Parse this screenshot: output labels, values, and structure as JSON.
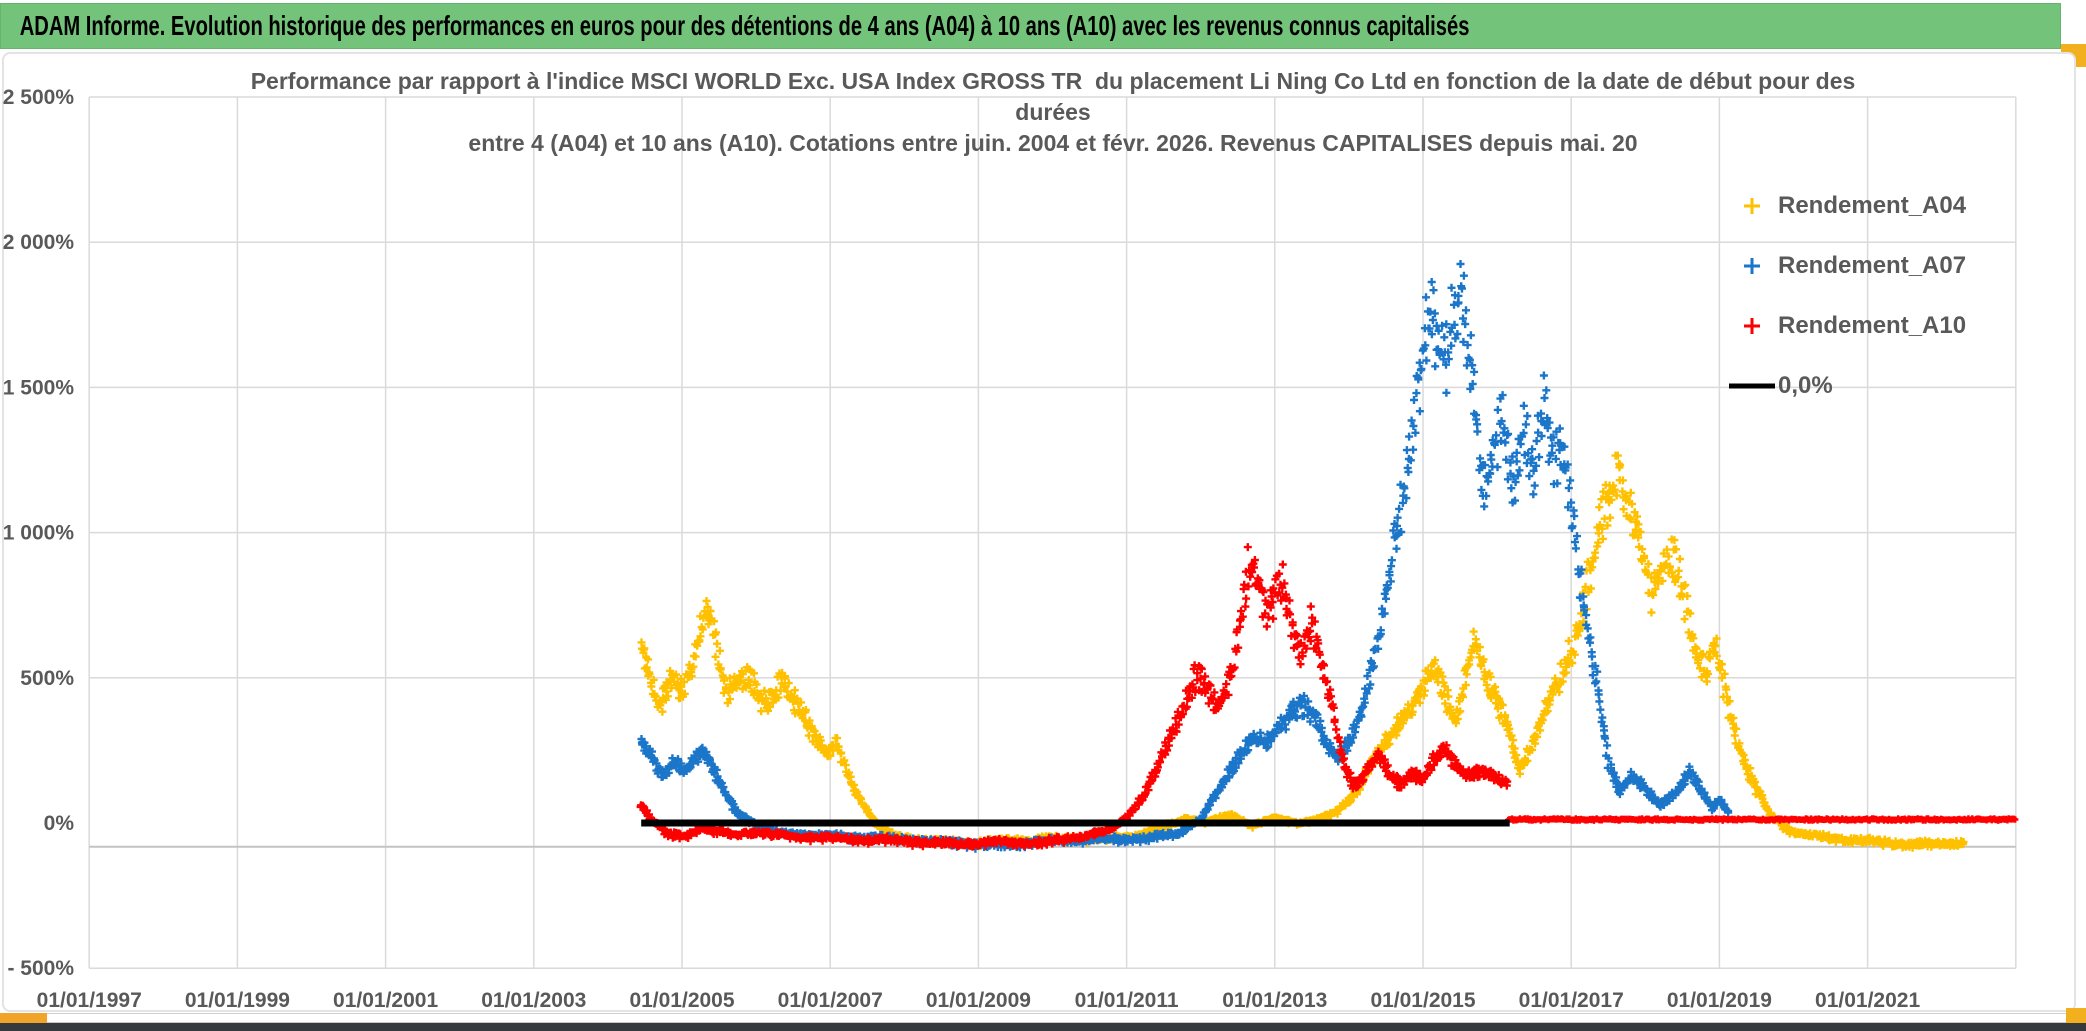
{
  "banner": {
    "title": "ADAM Informe. Evolution historique des performances en euros pour des détentions de 4 ans (A04) à 10 ans (A10) avec les revenus connus capitalisés"
  },
  "title": {
    "line1": "Performance par rapport à l'indice MSCI WORLD Exc. USA Index GROSS TR  du placement Li Ning Co Ltd en fonction de la date de début pour des",
    "line2": "durées",
    "line3": "entre 4 (A04) et 10 ans (A10). Cotations entre juin. 2004 et févr. 2026. Revenus CAPITALISES depuis mai. 20"
  },
  "legend": {
    "items": [
      {
        "label": "Rendement_A04",
        "color": "#FFC000",
        "marker": "plus"
      },
      {
        "label": "Rendement_A07",
        "color": "#1B76C9",
        "marker": "plus"
      },
      {
        "label": "Rendement_A10",
        "color": "#FF0000",
        "marker": "plus"
      },
      {
        "label": "0,0%",
        "color": "#000000",
        "marker": "line"
      }
    ]
  },
  "chart_data": {
    "type": "scatter",
    "marker_glyph": "+",
    "grid": true,
    "legend_position": "right-top-inside",
    "x_axis": {
      "tick_labels": [
        "01/01/1997",
        "01/01/1999",
        "01/01/2001",
        "01/01/2003",
        "01/01/2005",
        "01/01/2007",
        "01/01/2009",
        "01/01/2011",
        "01/01/2013",
        "01/01/2015",
        "01/01/2017",
        "01/01/2019",
        "01/01/2021"
      ],
      "tick_years": [
        1997,
        1999,
        2001,
        2003,
        2005,
        2007,
        2009,
        2011,
        2013,
        2015,
        2017,
        2019,
        2021
      ],
      "gridline_years": [
        1997,
        1999,
        2001,
        2003,
        2005,
        2007,
        2009,
        2011,
        2013,
        2015,
        2017,
        2019,
        2021,
        2023
      ],
      "range_years": [
        1997,
        2023
      ]
    },
    "y_axis": {
      "tick_labels": [
        "2 500%",
        "2 000%",
        "1 500%",
        "1 000%",
        "500%",
        "0%",
        "- 500%"
      ],
      "tick_values": [
        2500,
        2000,
        1500,
        1000,
        500,
        0,
        -500
      ],
      "unit": "%",
      "range": [
        -500,
        2500
      ]
    },
    "extra_axis_line_pct": -82,
    "zero_line": {
      "label": "0,0%",
      "value": 0,
      "from_year": 2004.45,
      "to_year": 2016.17,
      "color": "#000000"
    },
    "series": [
      {
        "name": "Rendement_A04",
        "color": "#FFC000",
        "seed": 11,
        "clamp_max": 1265,
        "anchors": [
          [
            2004.45,
            640
          ],
          [
            2004.55,
            520
          ],
          [
            2004.7,
            390
          ],
          [
            2004.85,
            470
          ],
          [
            2005.0,
            450
          ],
          [
            2005.1,
            520
          ],
          [
            2005.22,
            650
          ],
          [
            2005.33,
            755
          ],
          [
            2005.45,
            640
          ],
          [
            2005.6,
            455
          ],
          [
            2005.75,
            515
          ],
          [
            2005.9,
            560
          ],
          [
            2006.05,
            470
          ],
          [
            2006.2,
            440
          ],
          [
            2006.35,
            515
          ],
          [
            2006.5,
            450
          ],
          [
            2006.65,
            400
          ],
          [
            2006.8,
            300
          ],
          [
            2006.95,
            240
          ],
          [
            2007.1,
            265
          ],
          [
            2007.25,
            160
          ],
          [
            2007.45,
            60
          ],
          [
            2007.65,
            -15
          ],
          [
            2007.9,
            -45
          ],
          [
            2008.3,
            -55
          ],
          [
            2009.0,
            -62
          ],
          [
            2009.8,
            -58
          ],
          [
            2010.6,
            -52
          ],
          [
            2011.1,
            -42
          ],
          [
            2011.5,
            -10
          ],
          [
            2011.8,
            18
          ],
          [
            2012.1,
            2
          ],
          [
            2012.4,
            28
          ],
          [
            2012.7,
            -8
          ],
          [
            2013.0,
            18
          ],
          [
            2013.3,
            2
          ],
          [
            2013.6,
            15
          ],
          [
            2013.85,
            50
          ],
          [
            2014.1,
            120
          ],
          [
            2014.3,
            215
          ],
          [
            2014.55,
            300
          ],
          [
            2014.8,
            390
          ],
          [
            2015.0,
            465
          ],
          [
            2015.15,
            515
          ],
          [
            2015.3,
            430
          ],
          [
            2015.45,
            360
          ],
          [
            2015.58,
            540
          ],
          [
            2015.7,
            635
          ],
          [
            2015.85,
            515
          ],
          [
            2016.0,
            430
          ],
          [
            2016.15,
            370
          ],
          [
            2016.3,
            205
          ],
          [
            2016.5,
            300
          ],
          [
            2016.7,
            430
          ],
          [
            2016.9,
            555
          ],
          [
            2017.1,
            700
          ],
          [
            2017.3,
            895
          ],
          [
            2017.5,
            1105
          ],
          [
            2017.63,
            1240
          ],
          [
            2017.78,
            1090
          ],
          [
            2017.95,
            930
          ],
          [
            2018.08,
            770
          ],
          [
            2018.22,
            880
          ],
          [
            2018.38,
            975
          ],
          [
            2018.52,
            850
          ],
          [
            2018.66,
            625
          ],
          [
            2018.82,
            540
          ],
          [
            2018.95,
            655
          ],
          [
            2019.1,
            480
          ],
          [
            2019.28,
            260
          ],
          [
            2019.5,
            120
          ],
          [
            2019.7,
            30
          ],
          [
            2019.9,
            -18
          ],
          [
            2020.2,
            -45
          ],
          [
            2020.7,
            -55
          ],
          [
            2021.2,
            -60
          ],
          [
            2021.7,
            -68
          ],
          [
            2022.3,
            -65
          ]
        ]
      },
      {
        "name": "Rendement_A07",
        "color": "#1B76C9",
        "seed": 29,
        "clamp_max": 1925,
        "anchors": [
          [
            2004.45,
            310
          ],
          [
            2004.6,
            230
          ],
          [
            2004.75,
            160
          ],
          [
            2004.9,
            208
          ],
          [
            2005.05,
            175
          ],
          [
            2005.18,
            228
          ],
          [
            2005.3,
            248
          ],
          [
            2005.45,
            168
          ],
          [
            2005.6,
            90
          ],
          [
            2005.75,
            40
          ],
          [
            2005.95,
            5
          ],
          [
            2006.2,
            -25
          ],
          [
            2006.6,
            -35
          ],
          [
            2007.2,
            -45
          ],
          [
            2007.8,
            -55
          ],
          [
            2008.6,
            -62
          ],
          [
            2009.4,
            -68
          ],
          [
            2010.0,
            -62
          ],
          [
            2010.6,
            -58
          ],
          [
            2011.2,
            -48
          ],
          [
            2011.7,
            -30
          ],
          [
            2012.0,
            18
          ],
          [
            2012.25,
            118
          ],
          [
            2012.5,
            228
          ],
          [
            2012.7,
            298
          ],
          [
            2012.9,
            268
          ],
          [
            2013.1,
            338
          ],
          [
            2013.35,
            428
          ],
          [
            2013.55,
            378
          ],
          [
            2013.7,
            280
          ],
          [
            2013.85,
            240
          ],
          [
            2014.0,
            308
          ],
          [
            2014.2,
            448
          ],
          [
            2014.4,
            648
          ],
          [
            2014.55,
            898
          ],
          [
            2014.7,
            1148
          ],
          [
            2014.85,
            1418
          ],
          [
            2015.0,
            1598
          ],
          [
            2015.08,
            1775
          ],
          [
            2015.18,
            1640
          ],
          [
            2015.3,
            1555
          ],
          [
            2015.45,
            1815
          ],
          [
            2015.53,
            1900
          ],
          [
            2015.65,
            1595
          ],
          [
            2015.75,
            1280
          ],
          [
            2015.85,
            1100
          ],
          [
            2015.95,
            1295
          ],
          [
            2016.08,
            1415
          ],
          [
            2016.22,
            1250
          ],
          [
            2016.35,
            1420
          ],
          [
            2016.5,
            1295
          ],
          [
            2016.62,
            1495
          ],
          [
            2016.75,
            1340
          ],
          [
            2016.9,
            1395
          ],
          [
            2017.0,
            1190
          ],
          [
            2017.12,
            890
          ],
          [
            2017.25,
            640
          ],
          [
            2017.38,
            415
          ],
          [
            2017.5,
            215
          ],
          [
            2017.65,
            115
          ],
          [
            2017.8,
            165
          ],
          [
            2018.0,
            118
          ],
          [
            2018.2,
            58
          ],
          [
            2018.4,
            108
          ],
          [
            2018.6,
            185
          ],
          [
            2018.75,
            118
          ],
          [
            2018.9,
            55
          ],
          [
            2019.0,
            88
          ],
          [
            2019.12,
            42
          ]
        ]
      },
      {
        "name": "Rendement_A10",
        "color": "#FF0000",
        "seed": 47,
        "clamp_max": 985,
        "anchors": [
          [
            2004.45,
            68
          ],
          [
            2004.6,
            15
          ],
          [
            2004.8,
            -35
          ],
          [
            2005.05,
            -45
          ],
          [
            2005.25,
            -18
          ],
          [
            2005.45,
            -30
          ],
          [
            2005.7,
            -40
          ],
          [
            2006.0,
            -30
          ],
          [
            2006.5,
            -40
          ],
          [
            2007.0,
            -45
          ],
          [
            2007.5,
            -55
          ],
          [
            2008.0,
            -62
          ],
          [
            2008.6,
            -70
          ],
          [
            2009.2,
            -58
          ],
          [
            2009.8,
            -64
          ],
          [
            2010.4,
            -48
          ],
          [
            2010.8,
            -22
          ],
          [
            2011.0,
            20
          ],
          [
            2011.2,
            88
          ],
          [
            2011.4,
            180
          ],
          [
            2011.6,
            318
          ],
          [
            2011.8,
            468
          ],
          [
            2011.95,
            555
          ],
          [
            2012.1,
            478
          ],
          [
            2012.25,
            415
          ],
          [
            2012.4,
            520
          ],
          [
            2012.55,
            760
          ],
          [
            2012.65,
            935
          ],
          [
            2012.78,
            815
          ],
          [
            2012.9,
            698
          ],
          [
            2013.0,
            758
          ],
          [
            2013.1,
            818
          ],
          [
            2013.22,
            695
          ],
          [
            2013.35,
            598
          ],
          [
            2013.5,
            695
          ],
          [
            2013.65,
            518
          ],
          [
            2013.8,
            378
          ],
          [
            2013.95,
            198
          ],
          [
            2014.1,
            138
          ],
          [
            2014.25,
            198
          ],
          [
            2014.4,
            248
          ],
          [
            2014.55,
            178
          ],
          [
            2014.7,
            148
          ],
          [
            2014.85,
            188
          ],
          [
            2015.0,
            158
          ],
          [
            2015.15,
            218
          ],
          [
            2015.3,
            265
          ],
          [
            2015.45,
            198
          ],
          [
            2015.6,
            168
          ],
          [
            2015.8,
            175
          ],
          [
            2016.0,
            148
          ],
          [
            2016.15,
            132
          ]
        ],
        "flat_segment": {
          "from_year": 2016.15,
          "to_year": 2023.0,
          "value": 12
        }
      }
    ]
  }
}
